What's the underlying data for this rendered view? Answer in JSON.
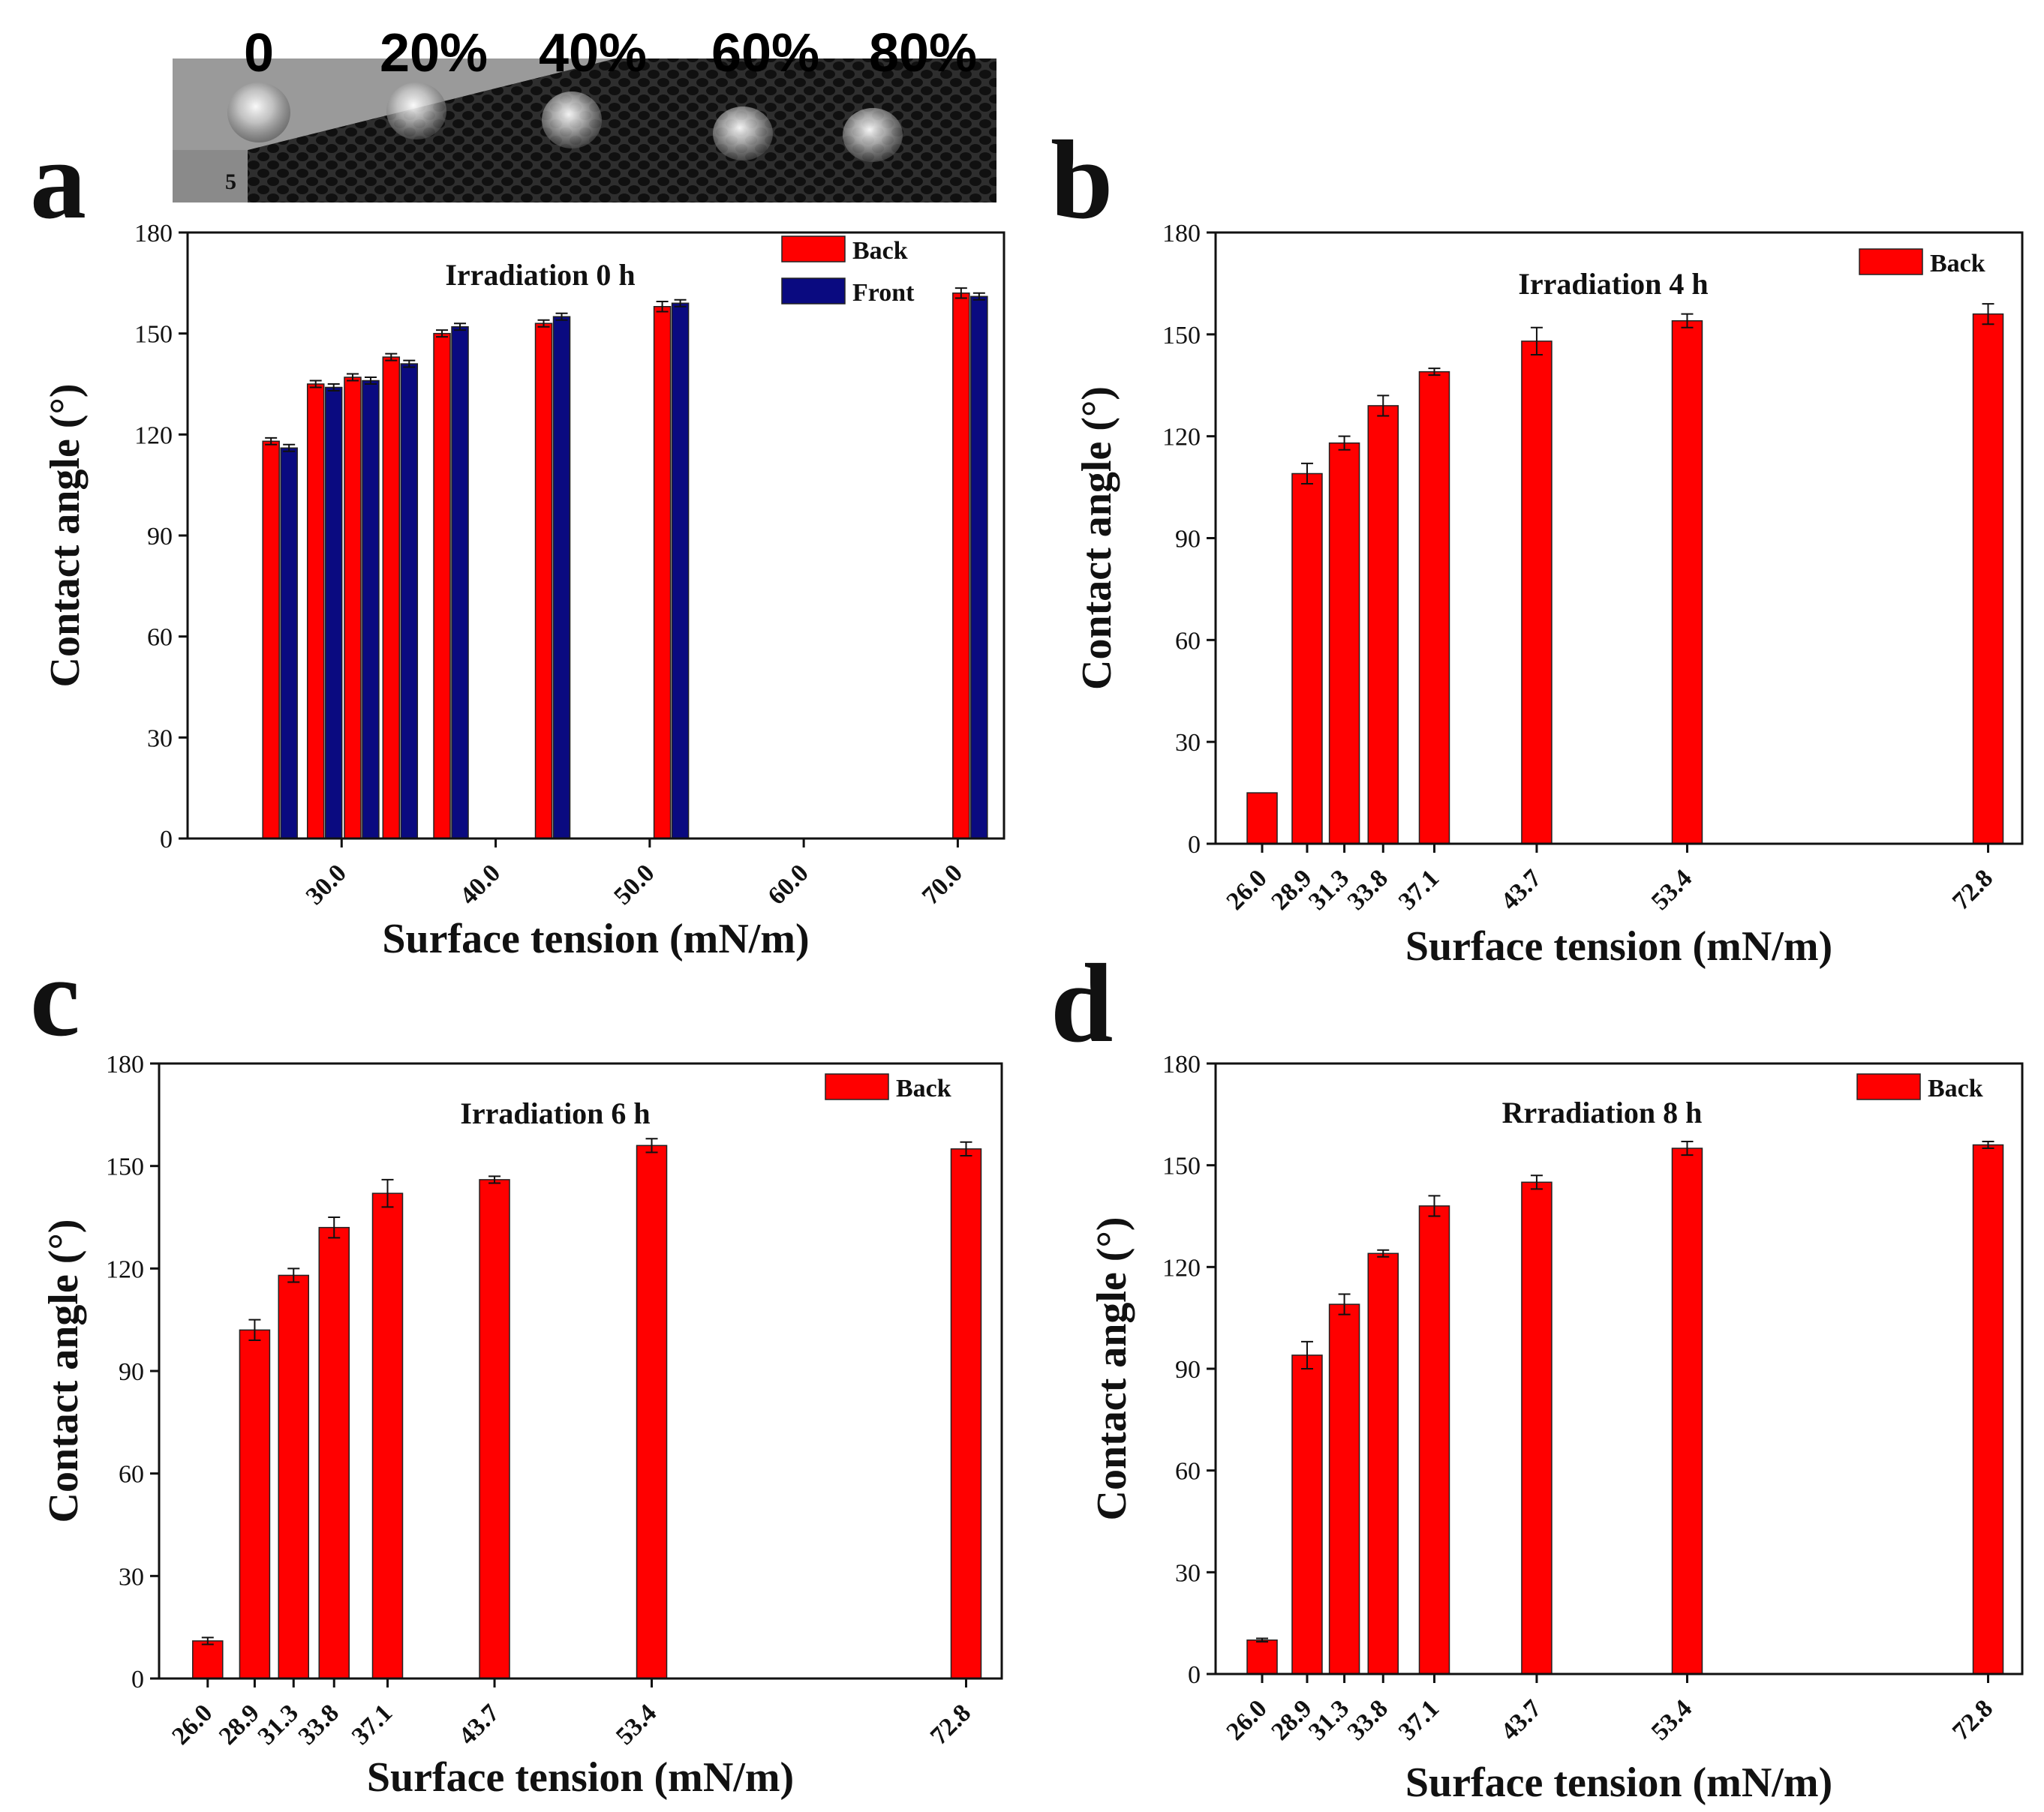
{
  "figure": {
    "photo": {
      "concentration_labels": [
        "0",
        "20%",
        "40%",
        "60%",
        "80%"
      ],
      "scale_mark": "5"
    }
  },
  "chart_data": [
    {
      "panel": "a",
      "type": "bar",
      "title": "Irradiation 0 h",
      "xlabel": "Surface tension (mN/m)",
      "ylabel": "Contact angle (°)",
      "xlim": [
        20,
        73
      ],
      "ylim": [
        0,
        180
      ],
      "yticks": [
        0,
        30,
        60,
        90,
        120,
        150,
        180
      ],
      "xtick_values": [
        30,
        40,
        50,
        60,
        70
      ],
      "xtick_labels": [
        "30.0",
        "40.0",
        "50.0",
        "60.0",
        "70.0"
      ],
      "x": [
        26.0,
        28.9,
        31.3,
        33.8,
        37.1,
        43.7,
        51.4,
        70.8
      ],
      "series": [
        {
          "name": "Back",
          "color": "#ff0000",
          "values": [
            118,
            135,
            137,
            143,
            150,
            153,
            158,
            162
          ],
          "errors": [
            1,
            1,
            1,
            1,
            1,
            1,
            1.5,
            1.5
          ]
        },
        {
          "name": "Front",
          "color": "#0a0a80",
          "values": [
            116,
            134,
            136,
            141,
            152,
            155,
            159,
            161
          ],
          "errors": [
            1,
            1,
            1,
            1,
            1,
            1,
            1,
            1
          ]
        }
      ],
      "legend": [
        "Back",
        "Front"
      ],
      "legend_position": "top-right"
    },
    {
      "panel": "b",
      "type": "bar",
      "title": "Irradiation 4 h",
      "xlabel": "Surface tension (mN/m)",
      "ylabel": "Contact angle (°)",
      "xlim": [
        23,
        75
      ],
      "ylim": [
        0,
        180
      ],
      "yticks": [
        0,
        30,
        60,
        90,
        120,
        150,
        180
      ],
      "x": [
        26.0,
        28.9,
        31.3,
        33.8,
        37.1,
        43.7,
        53.4,
        72.8
      ],
      "xtick_labels": [
        "26.0",
        "28.9",
        "31.3",
        "33.8",
        "37.1",
        "43.7",
        "53.4",
        "72.8"
      ],
      "series": [
        {
          "name": "Back",
          "color": "#ff0000",
          "values": [
            15,
            109,
            118,
            129,
            139,
            148,
            154,
            156
          ],
          "errors": [
            0,
            3,
            2,
            3,
            1,
            4,
            2,
            3
          ]
        }
      ],
      "legend": [
        "Back"
      ],
      "legend_position": "top-right"
    },
    {
      "panel": "c",
      "type": "bar",
      "title": "Irradiation 6 h",
      "xlabel": "Surface tension (mN/m)",
      "ylabel": "Contact angle (°)",
      "xlim": [
        23,
        75
      ],
      "ylim": [
        0,
        180
      ],
      "yticks": [
        0,
        30,
        60,
        90,
        120,
        150,
        180
      ],
      "x": [
        26.0,
        28.9,
        31.3,
        33.8,
        37.1,
        43.7,
        53.4,
        72.8
      ],
      "xtick_labels": [
        "26.0",
        "28.9",
        "31.3",
        "33.8",
        "37.1",
        "43.7",
        "53.4",
        "72.8"
      ],
      "series": [
        {
          "name": "Back",
          "color": "#ff0000",
          "values": [
            11,
            102,
            118,
            132,
            142,
            146,
            156,
            155
          ],
          "errors": [
            1,
            3,
            2,
            3,
            4,
            1,
            2,
            2
          ]
        }
      ],
      "legend": [
        "Back"
      ],
      "legend_position": "top-right"
    },
    {
      "panel": "d",
      "type": "bar",
      "title": "Rrradiation 8 h",
      "xlabel": "Surface tension (mN/m)",
      "ylabel": "Contact angle (°)",
      "xlim": [
        23,
        75
      ],
      "ylim": [
        0,
        180
      ],
      "yticks": [
        0,
        30,
        60,
        90,
        120,
        150,
        180
      ],
      "x": [
        26.0,
        28.9,
        31.3,
        33.8,
        37.1,
        43.7,
        53.4,
        72.8
      ],
      "xtick_labels": [
        "26.0",
        "28.9",
        "31.3",
        "33.8",
        "37.1",
        "43.7",
        "53.4",
        "72.8"
      ],
      "series": [
        {
          "name": "Back",
          "color": "#ff0000",
          "values": [
            10,
            94,
            109,
            124,
            138,
            145,
            155,
            156
          ],
          "errors": [
            0.5,
            4,
            3,
            1,
            3,
            2,
            2,
            1
          ]
        }
      ],
      "legend": [
        "Back"
      ],
      "legend_position": "top-right"
    }
  ]
}
